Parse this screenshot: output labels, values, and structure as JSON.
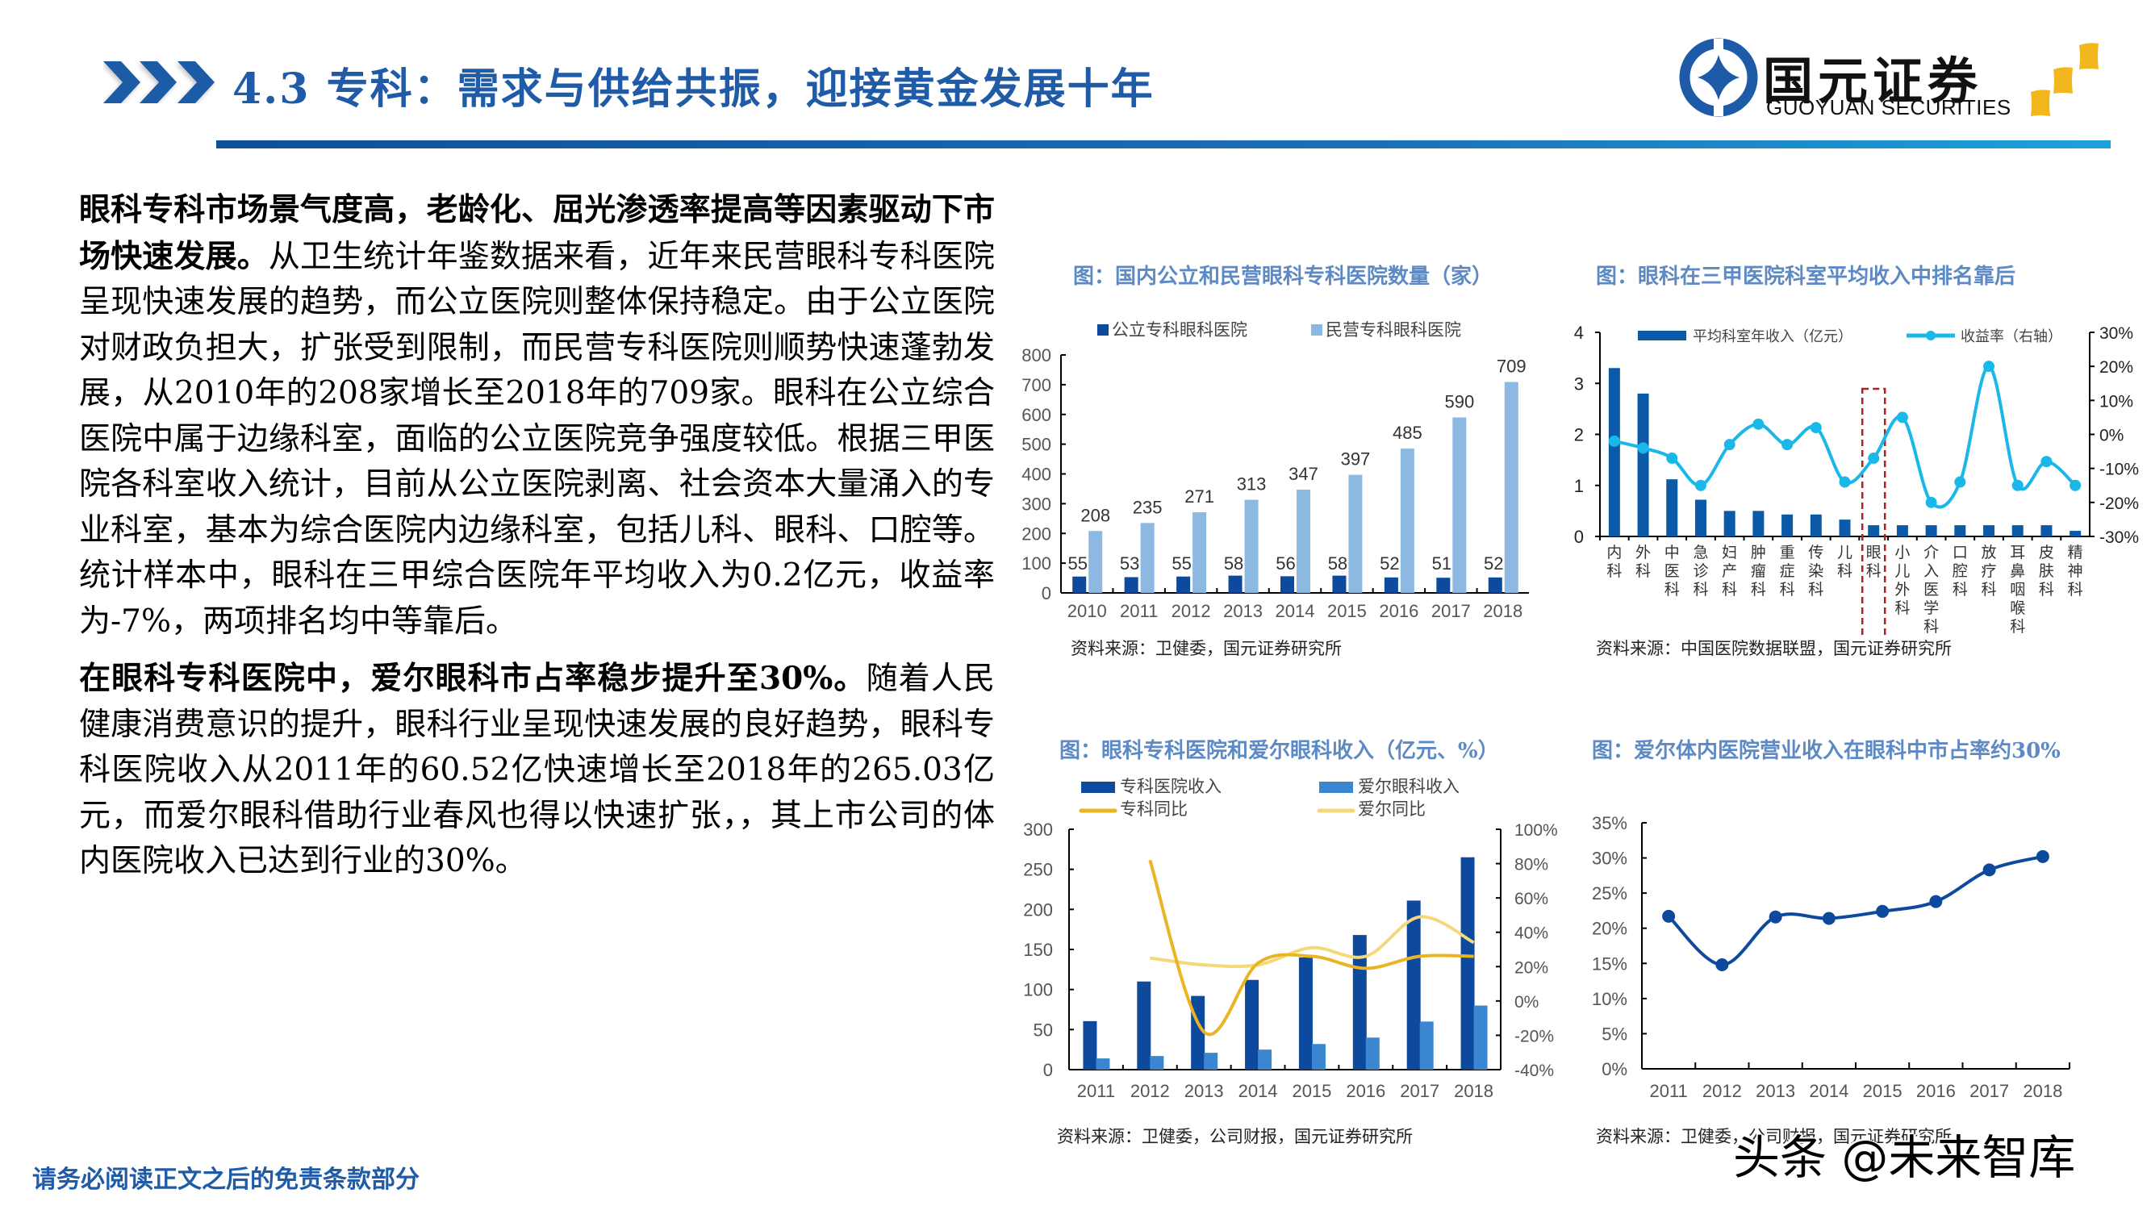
{
  "header": {
    "title": "4.3 专科：需求与供给共振，迎接黄金发展十年",
    "logo_cn": "国元证券",
    "logo_en": "GUOYUAN SECURITIES",
    "brand_color": "#1f5ba6",
    "icons": [
      "chevron-triple-icon",
      "guoyuan-logo-icon",
      "gold-diamonds-icon"
    ]
  },
  "body": {
    "paragraphs": [
      {
        "bold": "眼科专科市场景气度高，老龄化、屈光渗透率提高等因素驱动下市场快速发展。",
        "text": "从卫生统计年鉴数据来看，近年来民营眼科专科医院呈现快速发展的趋势，而公立医院则整体保持稳定。由于公立医院对财政负担大，扩张受到限制，而民营专科医院则顺势快速蓬勃发展，从2010年的208家增长至2018年的709家。眼科在公立综合医院中属于边缘科室，面临的公立医院竞争强度较低。根据三甲医院各科室收入统计，目前从公立医院剥离、社会资本大量涌入的专业科室，基本为综合医院内边缘科室，包括儿科、眼科、口腔等。统计样本中，眼科在三甲综合医院年平均收入为0.2亿元，收益率为-7%，两项排名均中等靠后。"
      },
      {
        "bold": "在眼科专科医院中，爱尔眼科市占率稳步提升至30%。",
        "text": "随着人民健康消费意识的提升，眼科行业呈现快速发展的良好趋势，眼科专科医院收入从2011年的60.52亿快速增长至2018年的265.03亿元，而爱尔眼科借助行业春风也得以快速扩张，，其上市公司的体内医院收入已达到行业的30%。"
      }
    ]
  },
  "footer": {
    "disclaimer": "请务必阅读正文之后的免责条款部分",
    "watermark": "头条 @未来智库"
  },
  "chart_data": [
    {
      "id": "chart1",
      "type": "bar",
      "title": "图：国内公立和民营眼科专科医院数量（家）",
      "categories": [
        "2010",
        "2011",
        "2012",
        "2013",
        "2014",
        "2015",
        "2016",
        "2017",
        "2018"
      ],
      "series": [
        {
          "name": "公立专科眼科医院",
          "color": "#0d4a9e",
          "values": [
            55,
            53,
            55,
            58,
            56,
            58,
            52,
            51,
            52
          ]
        },
        {
          "name": "民营专科眼科医院",
          "color": "#8db8e2",
          "values": [
            208,
            235,
            271,
            313,
            347,
            397,
            485,
            590,
            709
          ]
        }
      ],
      "yticks": [
        "0",
        "100",
        "200",
        "300",
        "400",
        "500",
        "600",
        "700",
        "800"
      ],
      "ylim": [
        0,
        800
      ],
      "xlabel": "",
      "ylabel": "",
      "grid": false,
      "legend_position": "top",
      "data_labels": true,
      "source": "资料来源：卫健委，国元证券研究所"
    },
    {
      "id": "chart2",
      "type": "bar+line",
      "title": "图：眼科在三甲医院科室平均收入中排名靠后",
      "categories": [
        "内科",
        "外科",
        "中医科",
        "急诊科",
        "妇产科",
        "肿瘤科",
        "重症科",
        "传染科",
        "儿科",
        "眼科",
        "小儿外科",
        "介入医学科",
        "口腔科",
        "放疗科",
        "耳鼻咽喉科",
        "皮肤科",
        "精神科"
      ],
      "series": [
        {
          "name": "平均科室年收入（亿元）",
          "axis": "left",
          "color": "#0b5aa8",
          "values": [
            3.3,
            2.8,
            1.12,
            0.72,
            0.5,
            0.5,
            0.43,
            0.43,
            0.33,
            0.22,
            0.22,
            0.22,
            0.22,
            0.22,
            0.22,
            0.22,
            0.11
          ]
        },
        {
          "name": "收益率（右轴）",
          "axis": "right",
          "color": "#1ab8e8",
          "values": [
            -2,
            -4,
            -7,
            -15,
            -3,
            3,
            -3,
            2,
            -14,
            -7,
            5,
            -20,
            -14,
            20,
            -15,
            -8,
            -15
          ]
        }
      ],
      "highlight": "眼科",
      "yticks_left": [
        "0",
        "1",
        "2",
        "3",
        "4"
      ],
      "ylim_left": [
        0,
        4
      ],
      "yticks_right": [
        "-30%",
        "-20%",
        "-10%",
        "0%",
        "10%",
        "20%",
        "30%"
      ],
      "ylim_right": [
        -30,
        30
      ],
      "legend_position": "top",
      "source": "资料来源：中国医院数据联盟，国元证券研究所"
    },
    {
      "id": "chart3",
      "type": "bar+line",
      "title": "图：眼科专科医院和爱尔眼科收入（亿元、%）",
      "categories": [
        "2011",
        "2012",
        "2013",
        "2014",
        "2015",
        "2016",
        "2017",
        "2018"
      ],
      "series": [
        {
          "name": "专科医院收入",
          "axis": "left",
          "type": "bar",
          "color": "#0d4a9e",
          "values": [
            60.52,
            110,
            92,
            112,
            140,
            168,
            211,
            265.03
          ]
        },
        {
          "name": "爱尔眼科收入",
          "axis": "left",
          "type": "bar",
          "color": "#3b86d0",
          "values": [
            14,
            17,
            21,
            25,
            32,
            40,
            60,
            80
          ]
        },
        {
          "name": "专科同比",
          "axis": "right",
          "type": "line",
          "color": "#eab422",
          "values": [
            null,
            82,
            -18,
            22,
            26,
            19,
            26,
            26
          ]
        },
        {
          "name": "爱尔同比",
          "axis": "right",
          "type": "line",
          "color": "#f5d879",
          "values": [
            null,
            25,
            21,
            21,
            31,
            26,
            49,
            34
          ]
        }
      ],
      "yticks_left": [
        "0",
        "50",
        "100",
        "150",
        "200",
        "250",
        "300"
      ],
      "ylim_left": [
        0,
        300
      ],
      "yticks_right": [
        "-40%",
        "-20%",
        "0%",
        "20%",
        "40%",
        "60%",
        "80%",
        "100%"
      ],
      "ylim_right": [
        -40,
        100
      ],
      "legend_position": "top",
      "source": "资料来源：卫健委，公司财报，国元证券研究所"
    },
    {
      "id": "chart4",
      "type": "line",
      "title": "图：爱尔体内医院营业收入在眼科中市占率约30%",
      "categories": [
        "2011",
        "2012",
        "2013",
        "2014",
        "2015",
        "2016",
        "2017",
        "2018"
      ],
      "series": [
        {
          "name": "市占率",
          "color": "#0d4a9e",
          "values": [
            21.7,
            14.8,
            21.6,
            21.4,
            22.4,
            23.8,
            28.3,
            30.2
          ]
        }
      ],
      "yticks": [
        "0%",
        "5%",
        "10%",
        "15%",
        "20%",
        "25%",
        "30%",
        "35%"
      ],
      "ylim": [
        0,
        35
      ],
      "xlabel": "",
      "ylabel": "",
      "grid": false,
      "source": "资料来源：卫健委，公司财报，国元证券研究所"
    }
  ]
}
